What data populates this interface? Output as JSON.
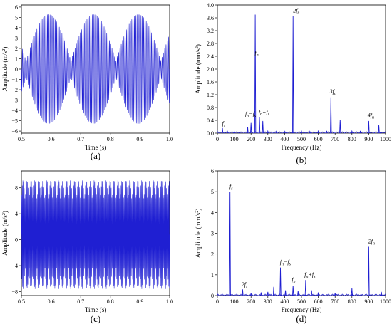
{
  "chart_data": [
    {
      "id": "a",
      "panel_label": "(a)",
      "type": "line",
      "style": "time-signal",
      "color": "#1f1fd2",
      "xlabel": "Time (s)",
      "ylabel": "Amplitude (m/s²)",
      "ylabel_parts": {
        "main": "Amplitude (m/s",
        "sup": "2",
        "end": ")"
      },
      "xlim": [
        0.5,
        1.0
      ],
      "ylim": [
        -6.2,
        6.2
      ],
      "xticks": [
        0.5,
        0.6,
        0.7,
        0.8,
        0.9,
        1.0
      ],
      "xtick_labels": [
        "0.5",
        "0.6",
        "0.7",
        "0.8",
        "0.9",
        "1.0"
      ],
      "yticks": [
        -6,
        -5,
        -4,
        -3,
        -2,
        -1,
        0,
        1,
        2,
        3,
        4,
        5,
        6
      ],
      "ytick_labels": [
        "−6",
        "−5",
        "−4",
        "−3",
        "−2",
        "−1",
        "0",
        "1",
        "2",
        "3",
        "4",
        "5",
        "6"
      ],
      "signal": {
        "carrier_hz": 225,
        "mod_hz": 6.6,
        "amplitude": 5.3,
        "mod_depth": 0.85,
        "phase": 0.3
      }
    },
    {
      "id": "b",
      "panel_label": "(b)",
      "type": "line",
      "style": "spectrum",
      "color": "#1f1fd2",
      "xlabel": "Frequency (Hz)",
      "ylabel": "Amplitude (mm/s²)",
      "ylabel_parts": {
        "main": "Amplitude (mm/s",
        "sup": "2",
        "end": ")"
      },
      "xlim": [
        0,
        1000
      ],
      "ylim": [
        0,
        4.0
      ],
      "xticks": [
        0,
        100,
        200,
        300,
        400,
        500,
        600,
        700,
        800,
        900,
        1000
      ],
      "xtick_labels": [
        "0",
        "100",
        "200",
        "300",
        "400",
        "500",
        "600",
        "700",
        "800",
        "900",
        "1000"
      ],
      "yticks": [
        0,
        0.4,
        0.8,
        1.2,
        1.6,
        2.0,
        2.4,
        2.8,
        3.2,
        3.6,
        4.0
      ],
      "ytick_labels": [
        "0.0",
        "0.4",
        "0.8",
        "1.2",
        "1.6",
        "2.0",
        "2.4",
        "2.8",
        "3.2",
        "3.6",
        "4.0"
      ],
      "peaks": [
        {
          "x": 30,
          "y": 0.16
        },
        {
          "x": 60,
          "y": 0.05
        },
        {
          "x": 100,
          "y": 0.06
        },
        {
          "x": 180,
          "y": 0.2
        },
        {
          "x": 200,
          "y": 0.32
        },
        {
          "x": 225,
          "y": 3.7
        },
        {
          "x": 250,
          "y": 0.5
        },
        {
          "x": 270,
          "y": 0.38
        },
        {
          "x": 300,
          "y": 0.06
        },
        {
          "x": 350,
          "y": 0.05
        },
        {
          "x": 400,
          "y": 0.05
        },
        {
          "x": 450,
          "y": 3.65
        },
        {
          "x": 500,
          "y": 0.06
        },
        {
          "x": 550,
          "y": 0.05
        },
        {
          "x": 600,
          "y": 0.06
        },
        {
          "x": 650,
          "y": 0.07
        },
        {
          "x": 675,
          "y": 1.12
        },
        {
          "x": 730,
          "y": 0.42
        },
        {
          "x": 800,
          "y": 0.06
        },
        {
          "x": 850,
          "y": 0.07
        },
        {
          "x": 900,
          "y": 0.38
        },
        {
          "x": 960,
          "y": 0.25
        }
      ],
      "annotations": [
        {
          "base": "f",
          "sub": "s",
          "rest": "",
          "x": 28,
          "y": 0.2
        },
        {
          "base": "f",
          "sub": "n",
          "rest": "−f",
          "sub2": "s",
          "x": 165,
          "y": 0.5
        },
        {
          "base": "f",
          "sub": "n",
          "rest": "+f",
          "sub2": "s",
          "x": 245,
          "y": 0.56
        },
        {
          "base": "f",
          "sub": "n",
          "rest": "",
          "x": 222,
          "y": 2.4
        },
        {
          "base": "2f",
          "sub": "n",
          "rest": "",
          "x": 450,
          "y": 3.72
        },
        {
          "base": "3f",
          "sub": "n",
          "rest": "",
          "x": 668,
          "y": 1.2
        },
        {
          "base": "4f",
          "sub": "n",
          "rest": "",
          "x": 893,
          "y": 0.46
        }
      ]
    },
    {
      "id": "c",
      "panel_label": "(c)",
      "type": "line",
      "style": "time-signal",
      "color": "#1f1fd2",
      "xlabel": "Time (s)",
      "ylabel": "Amplitude (m/s²)",
      "ylabel_parts": {
        "main": "Amplitude (m/s",
        "sup": "2",
        "end": ")"
      },
      "xlim": [
        0.5,
        1.0
      ],
      "ylim": [
        -8.6,
        10.6
      ],
      "xticks": [
        0.5,
        0.6,
        0.7,
        0.8,
        0.9,
        1.0
      ],
      "xtick_labels": [
        "0.5",
        "0.6",
        "0.7",
        "0.8",
        "0.9",
        "1.0"
      ],
      "yticks": [
        -8,
        -4,
        0,
        4,
        8
      ],
      "ytick_labels": [
        "−8",
        "−4",
        "0",
        "4",
        "8"
      ],
      "signal": {
        "carrier_hz": 450,
        "mod_hz": 75,
        "amplitude": 8.4,
        "mod_depth": 0.4,
        "phase": 0.2,
        "offset": 0.8
      }
    },
    {
      "id": "d",
      "panel_label": "(d)",
      "type": "line",
      "style": "spectrum",
      "color": "#1f1fd2",
      "xlabel": "Frequency (Hz)",
      "ylabel": "Amplitude (mm/s²)",
      "ylabel_parts": {
        "main": "Amplitude (mm/s",
        "sup": "2",
        "end": ")"
      },
      "xlim": [
        0,
        1000
      ],
      "ylim": [
        0,
        6
      ],
      "xticks": [
        0,
        100,
        200,
        300,
        400,
        500,
        600,
        700,
        800,
        900,
        1000
      ],
      "xtick_labels": [
        "0",
        "100",
        "200",
        "300",
        "400",
        "500",
        "600",
        "700",
        "800",
        "900",
        "1000"
      ],
      "yticks": [
        0,
        1,
        2,
        3,
        4,
        5,
        6
      ],
      "ytick_labels": [
        "0",
        "1",
        "2",
        "3",
        "4",
        "5",
        "6"
      ],
      "peaks": [
        {
          "x": 75,
          "y": 5.0
        },
        {
          "x": 150,
          "y": 0.3
        },
        {
          "x": 200,
          "y": 0.12
        },
        {
          "x": 260,
          "y": 0.15
        },
        {
          "x": 300,
          "y": 0.18
        },
        {
          "x": 335,
          "y": 0.42
        },
        {
          "x": 375,
          "y": 1.35
        },
        {
          "x": 405,
          "y": 0.25
        },
        {
          "x": 450,
          "y": 0.48
        },
        {
          "x": 480,
          "y": 0.22
        },
        {
          "x": 525,
          "y": 0.75
        },
        {
          "x": 560,
          "y": 0.25
        },
        {
          "x": 600,
          "y": 0.15
        },
        {
          "x": 700,
          "y": 0.12
        },
        {
          "x": 800,
          "y": 0.35
        },
        {
          "x": 900,
          "y": 2.35
        },
        {
          "x": 975,
          "y": 0.18
        }
      ],
      "annotations": [
        {
          "base": "f",
          "sub": "s",
          "rest": "",
          "x": 72,
          "y": 5.1
        },
        {
          "base": "2f",
          "sub": "s",
          "rest": "",
          "x": 143,
          "y": 0.38
        },
        {
          "base": "f",
          "sub": "n",
          "rest": "−f",
          "sub2": "s",
          "x": 372,
          "y": 1.45
        },
        {
          "base": "f",
          "sub": "n",
          "rest": "",
          "x": 442,
          "y": 0.6
        },
        {
          "base": "f",
          "sub": "n",
          "rest": "+f",
          "sub2": "s",
          "x": 518,
          "y": 0.85
        },
        {
          "base": "2f",
          "sub": "n",
          "rest": "",
          "x": 897,
          "y": 2.45
        }
      ]
    }
  ]
}
